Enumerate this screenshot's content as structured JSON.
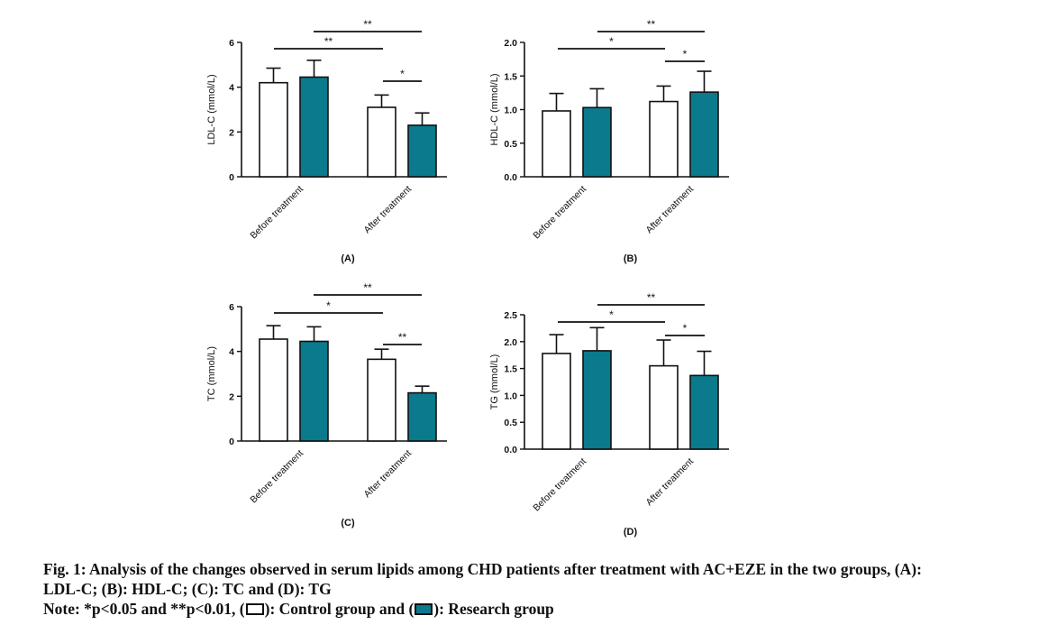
{
  "chart_data": [
    {
      "type": "bar",
      "panel": "(A)",
      "ylabel": "LDL-C (mmol/L)",
      "categories": [
        "Before treatment",
        "After treatment"
      ],
      "ylim": [
        0,
        6
      ],
      "yticks": [
        "0",
        "2",
        "4",
        "6"
      ],
      "series": [
        {
          "values": [
            4.2,
            3.1
          ],
          "errors": [
            0.65,
            0.55
          ]
        },
        {
          "values": [
            4.45,
            2.3
          ],
          "errors": [
            0.75,
            0.55
          ]
        }
      ],
      "significance": [
        {
          "from": "After treatment/Control",
          "to": "After treatment/Research",
          "label": "*"
        },
        {
          "from": "Before treatment/Control",
          "to": "After treatment/Control",
          "label": "**"
        },
        {
          "from": "Before treatment/Research",
          "to": "After treatment/Research",
          "label": "**"
        }
      ]
    },
    {
      "type": "bar",
      "panel": "(B)",
      "ylabel": "HDL-C (mmol/L)",
      "categories": [
        "Before treatment",
        "After treatment"
      ],
      "ylim": [
        0,
        2.0
      ],
      "yticks": [
        "0.0",
        "0.5",
        "1.0",
        "1.5",
        "2.0"
      ],
      "series": [
        {
          "values": [
            0.98,
            1.12
          ],
          "errors": [
            0.26,
            0.23
          ]
        },
        {
          "values": [
            1.03,
            1.26
          ],
          "errors": [
            0.28,
            0.31
          ]
        }
      ],
      "significance": [
        {
          "from": "After treatment/Control",
          "to": "After treatment/Research",
          "label": "*"
        },
        {
          "from": "Before treatment/Control",
          "to": "After treatment/Control",
          "label": "*"
        },
        {
          "from": "Before treatment/Research",
          "to": "After treatment/Research",
          "label": "**"
        }
      ]
    },
    {
      "type": "bar",
      "panel": "(C)",
      "ylabel": "TC (mmol/L)",
      "categories": [
        "Before treatment",
        "After treatment"
      ],
      "ylim": [
        0,
        6
      ],
      "yticks": [
        "0",
        "2",
        "4",
        "6"
      ],
      "series": [
        {
          "values": [
            4.55,
            3.65
          ],
          "errors": [
            0.6,
            0.45
          ]
        },
        {
          "values": [
            4.45,
            2.15
          ],
          "errors": [
            0.65,
            0.3
          ]
        }
      ],
      "significance": [
        {
          "from": "After treatment/Control",
          "to": "After treatment/Research",
          "label": "**"
        },
        {
          "from": "Before treatment/Control",
          "to": "After treatment/Control",
          "label": "*"
        },
        {
          "from": "Before treatment/Research",
          "to": "After treatment/Research",
          "label": "**"
        }
      ]
    },
    {
      "type": "bar",
      "panel": "(D)",
      "ylabel": "TG (mmol/L)",
      "categories": [
        "Before treatment",
        "After treatment"
      ],
      "ylim": [
        0,
        2.5
      ],
      "yticks": [
        "0.0",
        "0.5",
        "1.0",
        "1.5",
        "2.0",
        "2.5"
      ],
      "series": [
        {
          "values": [
            1.78,
            1.55
          ],
          "errors": [
            0.35,
            0.48
          ]
        },
        {
          "values": [
            1.83,
            1.37
          ],
          "errors": [
            0.43,
            0.45
          ]
        }
      ],
      "significance": [
        {
          "from": "After treatment/Control",
          "to": "After treatment/Research",
          "label": "*"
        },
        {
          "from": "Before treatment/Control",
          "to": "After treatment/Control",
          "label": "*"
        },
        {
          "from": "Before treatment/Research",
          "to": "After treatment/Research",
          "label": "**"
        }
      ]
    }
  ],
  "colors": {
    "control_fill": "#ffffff",
    "research_fill": "#0a7a8c",
    "stroke": "#111111"
  },
  "caption": {
    "line1": "Fig. 1: Analysis of the changes observed in serum lipids among CHD patients after treatment with AC+EZE in the two groups, (A):",
    "line2": "LDL-C; (B): HDL-C; (C): TC and (D): TG",
    "note_prefix": "Note: *p<0.05 and **p<0.01, (",
    "note_control": "): Control group and (",
    "note_research": "): Research group"
  }
}
